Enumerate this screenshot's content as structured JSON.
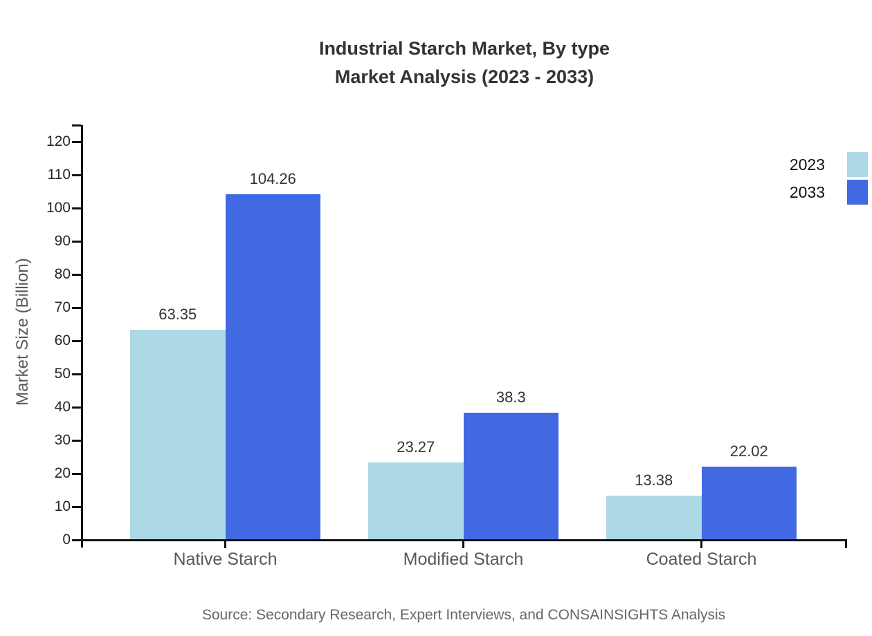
{
  "title": {
    "line1": "Industrial Starch Market, By type",
    "line2": "Market Analysis (2023 - 2033)"
  },
  "source": "Source: Secondary Research, Expert Interviews, and CONSAINSIGHTS Analysis",
  "chart_data": {
    "type": "bar",
    "title": "Industrial Starch Market, By type Market Analysis (2023 - 2033)",
    "categories": [
      "Native Starch",
      "Modified Starch",
      "Coated Starch"
    ],
    "series": [
      {
        "name": "2023",
        "color": "#ADD8E6",
        "values": [
          63.35,
          23.27,
          13.38
        ],
        "labels": [
          "63.35",
          "23.27",
          "13.38"
        ]
      },
      {
        "name": "2033",
        "color": "#4169E1",
        "values": [
          104.26,
          38.3,
          22.02
        ],
        "labels": [
          "104.26",
          "38.3",
          "22.02"
        ]
      }
    ],
    "xlabel": "",
    "ylabel": "Market Size (Billion)",
    "ylim": [
      0,
      120
    ],
    "ytick_step": 10,
    "grid": false,
    "legend_position": "top-right"
  },
  "colors": {
    "axis": "#111111",
    "title_text": "#333333",
    "tick_label": "#262626",
    "category_label": "#595959",
    "value_label": "#333333",
    "source_text": "#666666",
    "series_2023": "#ADD8E6",
    "series_2033": "#4169E1"
  }
}
